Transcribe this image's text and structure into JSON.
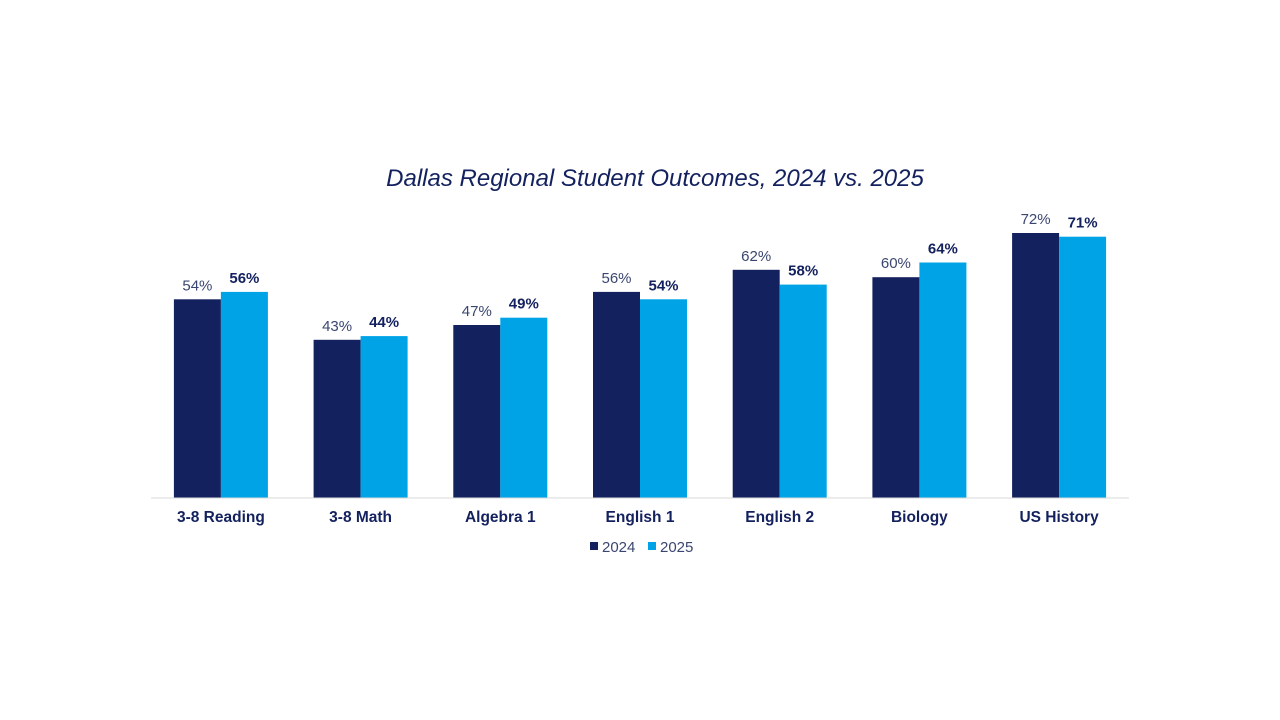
{
  "colors": {
    "series_2024": "#13215e",
    "series_2025": "#00a3e6",
    "text": "#13215e",
    "label_2024": "#3a4670",
    "axis": "#d9d9d9",
    "background": "#ffffff"
  },
  "chart_data": {
    "type": "bar",
    "title": "Dallas Regional Student Outcomes, 2024 vs. 2025",
    "xlabel": "",
    "ylabel": "",
    "ylim": [
      0,
      100
    ],
    "grid": false,
    "legend_position": "bottom",
    "categories": [
      "3-8 Reading",
      "3-8 Math",
      "Algebra 1",
      "English 1",
      "English 2",
      "Biology",
      "US History"
    ],
    "series": [
      {
        "name": "2024",
        "values": [
          54,
          43,
          47,
          56,
          62,
          60,
          72
        ],
        "labels": [
          "54%",
          "43%",
          "47%",
          "56%",
          "62%",
          "60%",
          "72%"
        ]
      },
      {
        "name": "2025",
        "values": [
          56,
          44,
          49,
          54,
          58,
          64,
          71
        ],
        "labels": [
          "56%",
          "44%",
          "49%",
          "54%",
          "58%",
          "64%",
          "71%"
        ]
      }
    ]
  }
}
